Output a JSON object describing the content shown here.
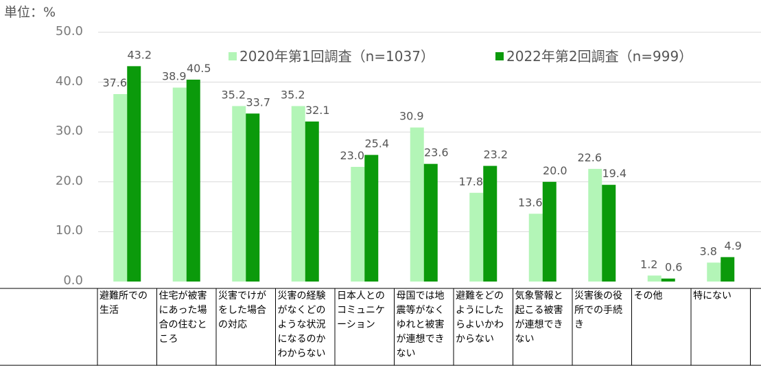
{
  "unit_label": "単位：%",
  "legend": [
    {
      "label": "2020年第1回調査（n=1037）",
      "color": "#b3f5b7"
    },
    {
      "label": "2022年第2回調査（n=999）",
      "color": "#0b9a0b"
    }
  ],
  "chart_data": {
    "type": "bar",
    "ylim": [
      0,
      50
    ],
    "yticks": [
      "0.0",
      "10.0",
      "20.0",
      "30.0",
      "40.0",
      "50.0"
    ],
    "grid": true,
    "legend_position": "top",
    "categories": [
      "避難所での生活",
      "住宅が被害にあった場合の住むところ",
      "災害でけがをした場合の対応",
      "災害の経験がなくどのような状況になるのかわからない",
      "日本人とのコミュニケーション",
      "母国では地震等がなくゆれと被害が連想できない",
      "避難をどのようにしたらよいかわからない",
      "気象警報と起こる被害が連想できない",
      "災害後の役所での手続き",
      "その他",
      "特にない"
    ],
    "series": [
      {
        "name": "2020年第1回調査（n=1037）",
        "color": "#b3f5b7",
        "values": [
          37.6,
          38.9,
          35.2,
          35.2,
          23.0,
          30.9,
          17.8,
          13.6,
          22.6,
          1.2,
          3.8
        ],
        "labels": [
          "37.6",
          "38.9",
          "35.2",
          "35.2",
          "23.0",
          "30.9",
          "17.8",
          "13.6",
          "22.6",
          "1.2",
          "3.8"
        ]
      },
      {
        "name": "2022年第2回調査（n=999）",
        "color": "#0b9a0b",
        "values": [
          43.2,
          40.5,
          33.7,
          32.1,
          25.4,
          23.6,
          23.2,
          20.0,
          19.4,
          0.6,
          4.9
        ],
        "labels": [
          "43.2",
          "40.5",
          "33.7",
          "32.1",
          "25.4",
          "23.6",
          "23.2",
          "20.0",
          "19.4",
          "0.6",
          "4.9"
        ]
      }
    ]
  }
}
